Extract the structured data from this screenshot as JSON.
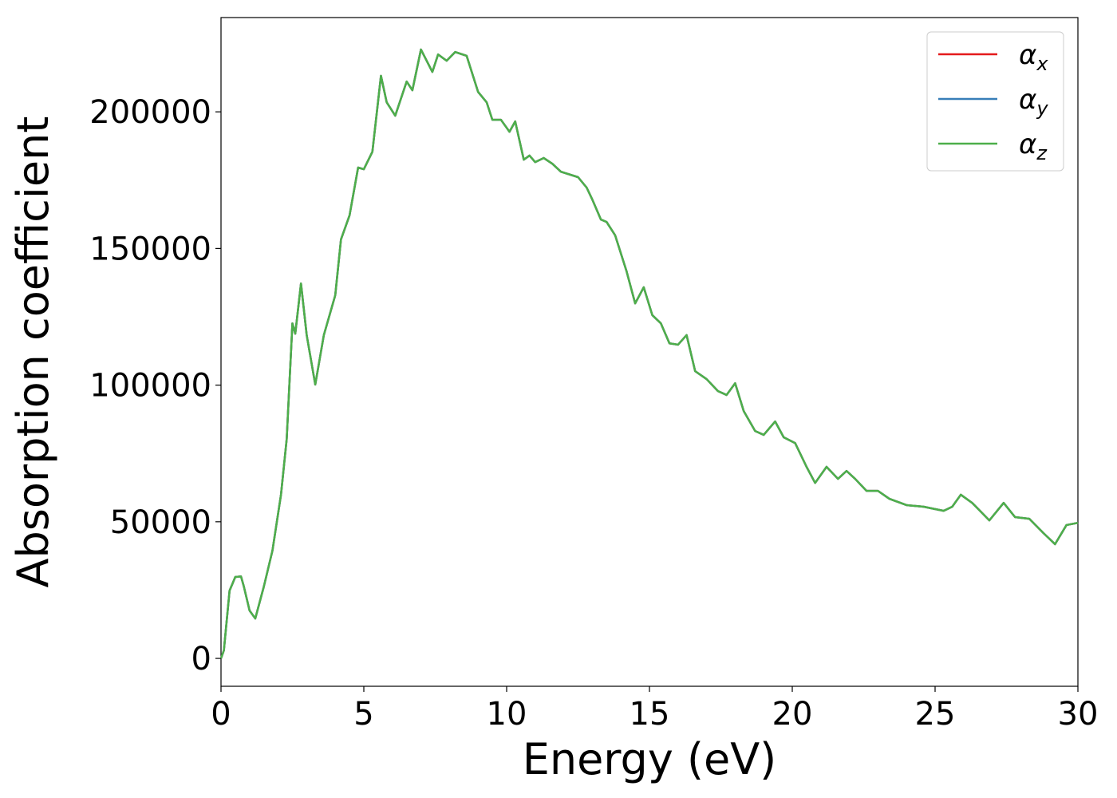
{
  "chart_data": {
    "type": "line",
    "xlabel": "Energy (eV)",
    "ylabel": "Absorption coefficient",
    "x": [
      0,
      0.1,
      0.3,
      0.5,
      0.7,
      0.8,
      1.0,
      1.2,
      1.5,
      1.8,
      2.1,
      2.3,
      2.5,
      2.6,
      2.8,
      3.0,
      3.3,
      3.6,
      4.0,
      4.2,
      4.5,
      4.8,
      5.0,
      5.3,
      5.6,
      5.8,
      6.1,
      6.5,
      6.7,
      7.0,
      7.4,
      7.6,
      7.9,
      8.2,
      8.6,
      9.0,
      9.3,
      9.5,
      9.8,
      10.1,
      10.3,
      10.6,
      10.8,
      11.0,
      11.3,
      11.6,
      11.9,
      12.5,
      12.8,
      13.0,
      13.3,
      13.5,
      13.8,
      14.2,
      14.5,
      14.8,
      15.1,
      15.4,
      15.7,
      16.0,
      16.3,
      16.6,
      17.0,
      17.4,
      17.7,
      18.0,
      18.3,
      18.7,
      19.0,
      19.4,
      19.7,
      20.1,
      20.5,
      20.8,
      21.2,
      21.6,
      21.9,
      22.2,
      22.6,
      23.0,
      23.4,
      24.0,
      24.6,
      25.3,
      25.6,
      25.9,
      26.3,
      26.9,
      27.4,
      27.8,
      28.3,
      28.8,
      29.2,
      29.6,
      30.0
    ],
    "series": [
      {
        "name": "αx",
        "color": "#e41a1c",
        "values": [
          0,
          2900,
          24800,
          29800,
          30000,
          26300,
          17500,
          14600,
          26300,
          39400,
          59900,
          80300,
          122600,
          118800,
          137200,
          118300,
          100200,
          118300,
          132900,
          153300,
          162100,
          179600,
          179000,
          185400,
          213200,
          203500,
          198600,
          211100,
          207900,
          222800,
          214600,
          221000,
          218700,
          221900,
          220500,
          207300,
          203500,
          197100,
          197100,
          192700,
          196500,
          182500,
          184000,
          181600,
          183100,
          181000,
          178100,
          176100,
          172300,
          167900,
          160600,
          159700,
          154800,
          141600,
          129900,
          135800,
          125600,
          122600,
          115300,
          114800,
          118300,
          105100,
          102200,
          97800,
          96400,
          100700,
          90500,
          83200,
          81800,
          86700,
          80900,
          78800,
          70100,
          64200,
          70100,
          65700,
          68600,
          65700,
          61300,
          61300,
          58400,
          56100,
          55500,
          54000,
          55500,
          59900,
          56900,
          50500,
          56900,
          51700,
          51100,
          45800,
          41800,
          48800,
          49600
        ]
      },
      {
        "name": "αy",
        "color": "#377eb8",
        "values": [
          0,
          2900,
          24800,
          29800,
          30000,
          26300,
          17500,
          14600,
          26300,
          39400,
          59900,
          80300,
          122600,
          118800,
          137200,
          118300,
          100200,
          118300,
          132900,
          153300,
          162100,
          179600,
          179000,
          185400,
          213200,
          203500,
          198600,
          211100,
          207900,
          222800,
          214600,
          221000,
          218700,
          221900,
          220500,
          207300,
          203500,
          197100,
          197100,
          192700,
          196500,
          182500,
          184000,
          181600,
          183100,
          181000,
          178100,
          176100,
          172300,
          167900,
          160600,
          159700,
          154800,
          141600,
          129900,
          135800,
          125600,
          122600,
          115300,
          114800,
          118300,
          105100,
          102200,
          97800,
          96400,
          100700,
          90500,
          83200,
          81800,
          86700,
          80900,
          78800,
          70100,
          64200,
          70100,
          65700,
          68600,
          65700,
          61300,
          61300,
          58400,
          56100,
          55500,
          54000,
          55500,
          59900,
          56900,
          50500,
          56900,
          51700,
          51100,
          45800,
          41800,
          48800,
          49600
        ]
      },
      {
        "name": "αz",
        "color": "#4daf4a",
        "values": [
          0,
          2900,
          24800,
          29800,
          30000,
          26300,
          17500,
          14600,
          26300,
          39400,
          59900,
          80300,
          122600,
          118800,
          137200,
          118300,
          100200,
          118300,
          132900,
          153300,
          162100,
          179600,
          179000,
          185400,
          213200,
          203500,
          198600,
          211100,
          207900,
          222800,
          214600,
          221000,
          218700,
          221900,
          220500,
          207300,
          203500,
          197100,
          197100,
          192700,
          196500,
          182500,
          184000,
          181600,
          183100,
          181000,
          178100,
          176100,
          172300,
          167900,
          160600,
          159700,
          154800,
          141600,
          129900,
          135800,
          125600,
          122600,
          115300,
          114800,
          118300,
          105100,
          102200,
          97800,
          96400,
          100700,
          90500,
          83200,
          81800,
          86700,
          80900,
          78800,
          70100,
          64200,
          70100,
          65700,
          68600,
          65700,
          61300,
          61300,
          58400,
          56100,
          55500,
          54000,
          55500,
          59900,
          56900,
          50500,
          56900,
          51700,
          51100,
          45800,
          41800,
          48800,
          49600
        ]
      }
    ],
    "xlim": [
      0,
      30
    ],
    "xticks": [
      0,
      5,
      10,
      15,
      20,
      25,
      30
    ],
    "ylim": [
      -10200,
      234500
    ],
    "yticks": [
      0,
      50000,
      100000,
      150000,
      200000
    ],
    "legend": "upper right",
    "grid": false
  }
}
